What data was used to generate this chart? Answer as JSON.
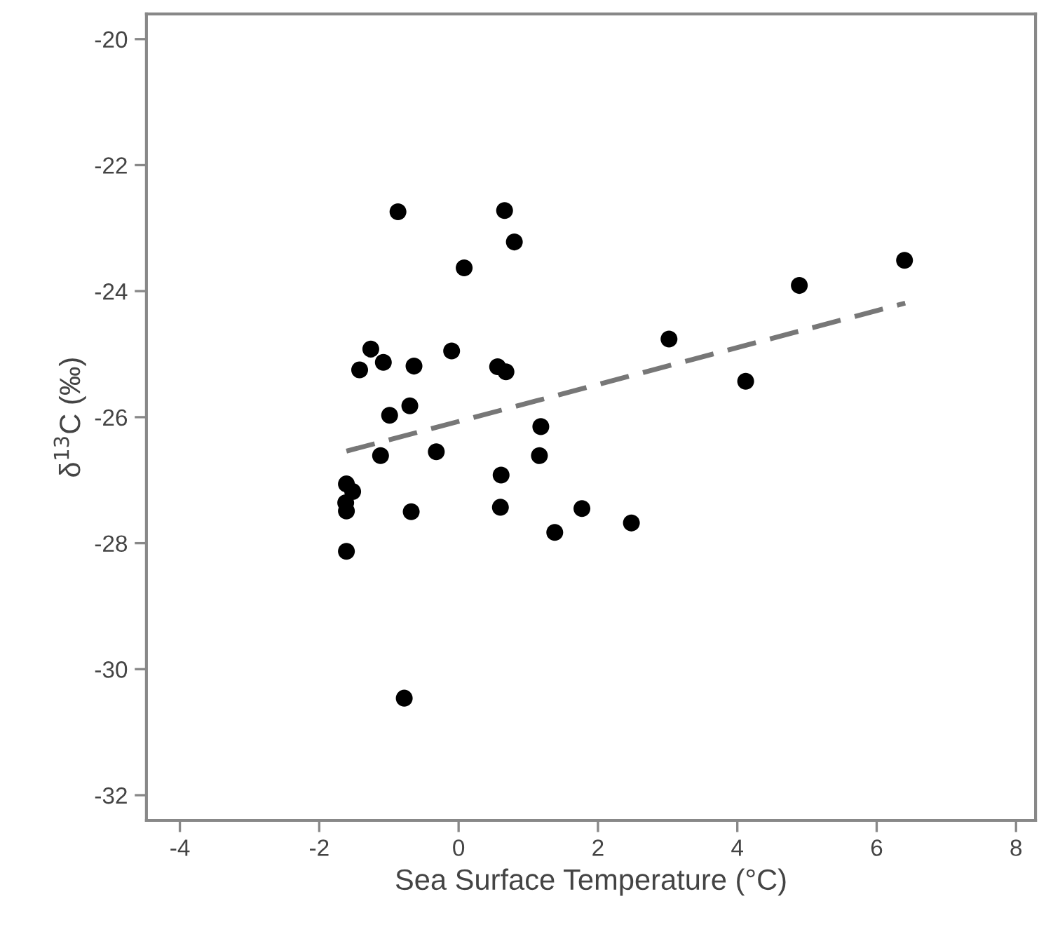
{
  "chart_data": {
    "type": "scatter",
    "xlabel": "Sea Surface Temperature (°C)",
    "ylabel": "δ$^{13}$C (‰)",
    "xlim": [
      -4.48,
      8.28
    ],
    "ylim": [
      -32.4,
      -19.6
    ],
    "xticks": [
      -4,
      -2,
      0,
      2,
      4,
      6,
      8
    ],
    "yticks": [
      -32,
      -30,
      -28,
      -26,
      -24,
      -22,
      -20
    ],
    "grid": false,
    "legend": false,
    "marker": "circle",
    "series": [
      {
        "color": "#000000",
        "x": [
          -0.87,
          0.66,
          0.8,
          0.08,
          -1.26,
          -1.42,
          -1.08,
          -0.64,
          -0.1,
          0.56,
          0.68,
          -0.99,
          -0.7,
          -1.12,
          -0.32,
          1.18,
          1.16,
          0.61,
          0.6,
          1.38,
          1.77,
          -0.68,
          -1.61,
          -1.52,
          -1.62,
          -1.61,
          -1.61,
          2.48,
          3.02,
          4.12,
          4.89,
          6.4,
          -0.78
        ],
        "values": [
          -22.74,
          -22.72,
          -23.22,
          -23.63,
          -24.92,
          -25.25,
          -25.13,
          -25.19,
          -24.95,
          -25.2,
          -25.28,
          -25.97,
          -25.82,
          -26.61,
          -26.55,
          -26.15,
          -26.61,
          -26.92,
          -27.43,
          -27.83,
          -27.45,
          -27.5,
          -27.06,
          -27.18,
          -27.36,
          -27.49,
          -28.13,
          -27.68,
          -24.76,
          -25.43,
          -23.91,
          -23.51,
          -30.46
        ]
      },
      {
        "type": "line",
        "color": "#777777",
        "line_style": "dashed",
        "marker": "none",
        "x": [
          -1.61,
          6.41
        ],
        "values": [
          -26.54,
          -24.19
        ]
      }
    ]
  }
}
